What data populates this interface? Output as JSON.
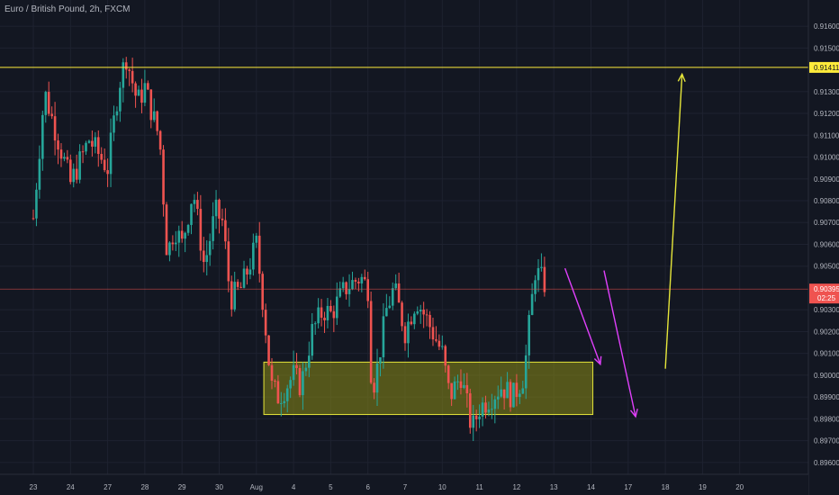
{
  "title": "Euro / British Pound, 2h, FXCM",
  "colors": {
    "background": "#131722",
    "grid": "#1e2230",
    "up": "#26a69a",
    "down": "#ef5350",
    "resistance_line": "#ffeb3b",
    "zone_fill": "#8a8a16",
    "zone_border": "#e6e63a",
    "arrow_magenta": "#e040fb",
    "arrow_yellow": "#e6e63a",
    "price_line": "#ef5350",
    "axis_text": "#b2b5be"
  },
  "chart_data": {
    "type": "candlestick",
    "title": "Euro / British Pound, 2h, FXCM",
    "y_ticks": [
      "0.91600",
      "0.91500",
      "0.91300",
      "0.91200",
      "0.91100",
      "0.91000",
      "0.90900",
      "0.90800",
      "0.90700",
      "0.90600",
      "0.90500",
      "0.90300",
      "0.90200",
      "0.90100",
      "0.90000",
      "0.89900",
      "0.89800",
      "0.89700",
      "0.89600"
    ],
    "x_ticks": [
      {
        "label": "23",
        "session": 0
      },
      {
        "label": "24",
        "session": 1
      },
      {
        "label": "27",
        "session": 2
      },
      {
        "label": "28",
        "session": 3
      },
      {
        "label": "29",
        "session": 4
      },
      {
        "label": "30",
        "session": 5
      },
      {
        "label": "Aug",
        "session": 6
      },
      {
        "label": "4",
        "session": 7
      },
      {
        "label": "5",
        "session": 8
      },
      {
        "label": "6",
        "session": 9
      },
      {
        "label": "7",
        "session": 10
      },
      {
        "label": "10",
        "session": 11
      },
      {
        "label": "11",
        "session": 12
      },
      {
        "label": "12",
        "session": 13
      },
      {
        "label": "13",
        "session": 14
      },
      {
        "label": "14",
        "session": 15
      },
      {
        "label": "17",
        "session": 16
      },
      {
        "label": "18",
        "session": 17
      },
      {
        "label": "19",
        "session": 18
      },
      {
        "label": "20",
        "session": 19
      }
    ],
    "ylim": [
      0.8955,
      0.9172
    ],
    "resistance_level": 0.91411,
    "resistance_label": "0.91411",
    "last_price": 0.90395,
    "last_price_label": "0.90395",
    "countdown_label": "02:25",
    "support_zone": {
      "low": 0.8982,
      "high": 0.9006,
      "start_session": 6.2,
      "end_session": 15.05
    },
    "annotations": [
      {
        "type": "arrow",
        "color": "magenta",
        "from": {
          "session": 14.3,
          "price": 0.9049
        },
        "to": {
          "session": 15.25,
          "price": 0.9005
        }
      },
      {
        "type": "arrow",
        "color": "magenta",
        "from": {
          "session": 15.35,
          "price": 0.9048
        },
        "to": {
          "session": 16.2,
          "price": 0.8981
        }
      },
      {
        "type": "arrow",
        "color": "yellow",
        "from": {
          "session": 17.0,
          "price": 0.9003
        },
        "to": {
          "session": 17.45,
          "price": 0.9138
        }
      }
    ],
    "waypoints": [
      [
        0,
        0.9072
      ],
      [
        0.3,
        0.913
      ],
      [
        1.0,
        0.9088
      ],
      [
        1.5,
        0.9108
      ],
      [
        2.0,
        0.9095
      ],
      [
        2.3,
        0.9133
      ],
      [
        2.5,
        0.9146
      ],
      [
        2.8,
        0.9125
      ],
      [
        3.0,
        0.9132
      ],
      [
        3.4,
        0.9108
      ],
      [
        3.6,
        0.9055
      ],
      [
        3.8,
        0.9068
      ],
      [
        4.0,
        0.906
      ],
      [
        4.3,
        0.9085
      ],
      [
        4.6,
        0.905
      ],
      [
        4.9,
        0.9075
      ],
      [
        5.1,
        0.907
      ],
      [
        5.3,
        0.9035
      ],
      [
        5.6,
        0.904
      ],
      [
        6.0,
        0.906
      ],
      [
        6.2,
        0.903
      ],
      [
        6.4,
        0.8995
      ],
      [
        6.6,
        0.899
      ],
      [
        7.0,
        0.9
      ],
      [
        7.2,
        0.8995
      ],
      [
        7.5,
        0.902
      ],
      [
        7.8,
        0.903
      ],
      [
        8.0,
        0.9028
      ],
      [
        8.4,
        0.904
      ],
      [
        8.8,
        0.9045
      ],
      [
        9.0,
        0.904
      ],
      [
        9.1,
        0.8995
      ],
      [
        9.2,
        0.8998
      ],
      [
        9.5,
        0.903
      ],
      [
        9.7,
        0.904
      ],
      [
        10.0,
        0.902
      ],
      [
        10.3,
        0.9035
      ],
      [
        10.6,
        0.9025
      ],
      [
        11.0,
        0.901
      ],
      [
        11.2,
        0.899
      ],
      [
        11.5,
        0.9
      ],
      [
        11.8,
        0.8975
      ],
      [
        12.0,
        0.8985
      ],
      [
        12.3,
        0.899
      ],
      [
        12.6,
        0.8995
      ],
      [
        12.9,
        0.899
      ],
      [
        13.2,
        0.9
      ],
      [
        13.35,
        0.9025
      ],
      [
        13.5,
        0.9048
      ],
      [
        13.75,
        0.9042
      ]
    ]
  }
}
